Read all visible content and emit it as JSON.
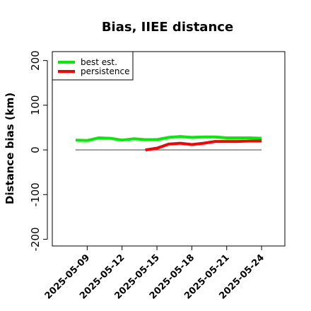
{
  "chart_data": {
    "type": "line",
    "title": "Bias, IIEE distance",
    "xlabel": "",
    "ylabel": "Distance bias (km)",
    "xlim": [
      "2025-05-06",
      "2025-05-26"
    ],
    "ylim": [
      -215,
      220
    ],
    "y_ticks": [
      -200,
      -100,
      0,
      100,
      200
    ],
    "y_tick_labels": [
      "-200",
      "-100",
      "0",
      "100",
      "200"
    ],
    "x_ticks": [
      "2025-05-09",
      "2025-05-12",
      "2025-05-15",
      "2025-05-18",
      "2025-05-21",
      "2025-05-24"
    ],
    "x_tick_labels": [
      "2025-05-09",
      "2025-05-12",
      "2025-05-15",
      "2025-05-18",
      "2025-05-21",
      "2025-05-24"
    ],
    "reference_line": {
      "y": 0,
      "x_from": "2025-05-08",
      "x_to": "2025-05-24",
      "color": "#555555"
    },
    "legend_position": "top-left",
    "series": [
      {
        "name": "best est.",
        "color": "#00ee00",
        "x": [
          "2025-05-08",
          "2025-05-09",
          "2025-05-10",
          "2025-05-11",
          "2025-05-12",
          "2025-05-13",
          "2025-05-14",
          "2025-05-15",
          "2025-05-16",
          "2025-05-17",
          "2025-05-18",
          "2025-05-19",
          "2025-05-20",
          "2025-05-21",
          "2025-05-22",
          "2025-05-23",
          "2025-05-24"
        ],
        "values": [
          22,
          21,
          27,
          26,
          22,
          25,
          23,
          23,
          28,
          30,
          28,
          29,
          29,
          27,
          27,
          27,
          26
        ]
      },
      {
        "name": "persistence",
        "color": "#ff0000",
        "x": [
          "2025-05-14",
          "2025-05-15",
          "2025-05-16",
          "2025-05-17",
          "2025-05-18",
          "2025-05-19",
          "2025-05-20",
          "2025-05-21",
          "2025-05-22",
          "2025-05-23",
          "2025-05-24"
        ],
        "values": [
          0,
          4,
          13,
          15,
          12,
          15,
          19,
          19,
          19,
          20,
          20
        ]
      }
    ]
  }
}
